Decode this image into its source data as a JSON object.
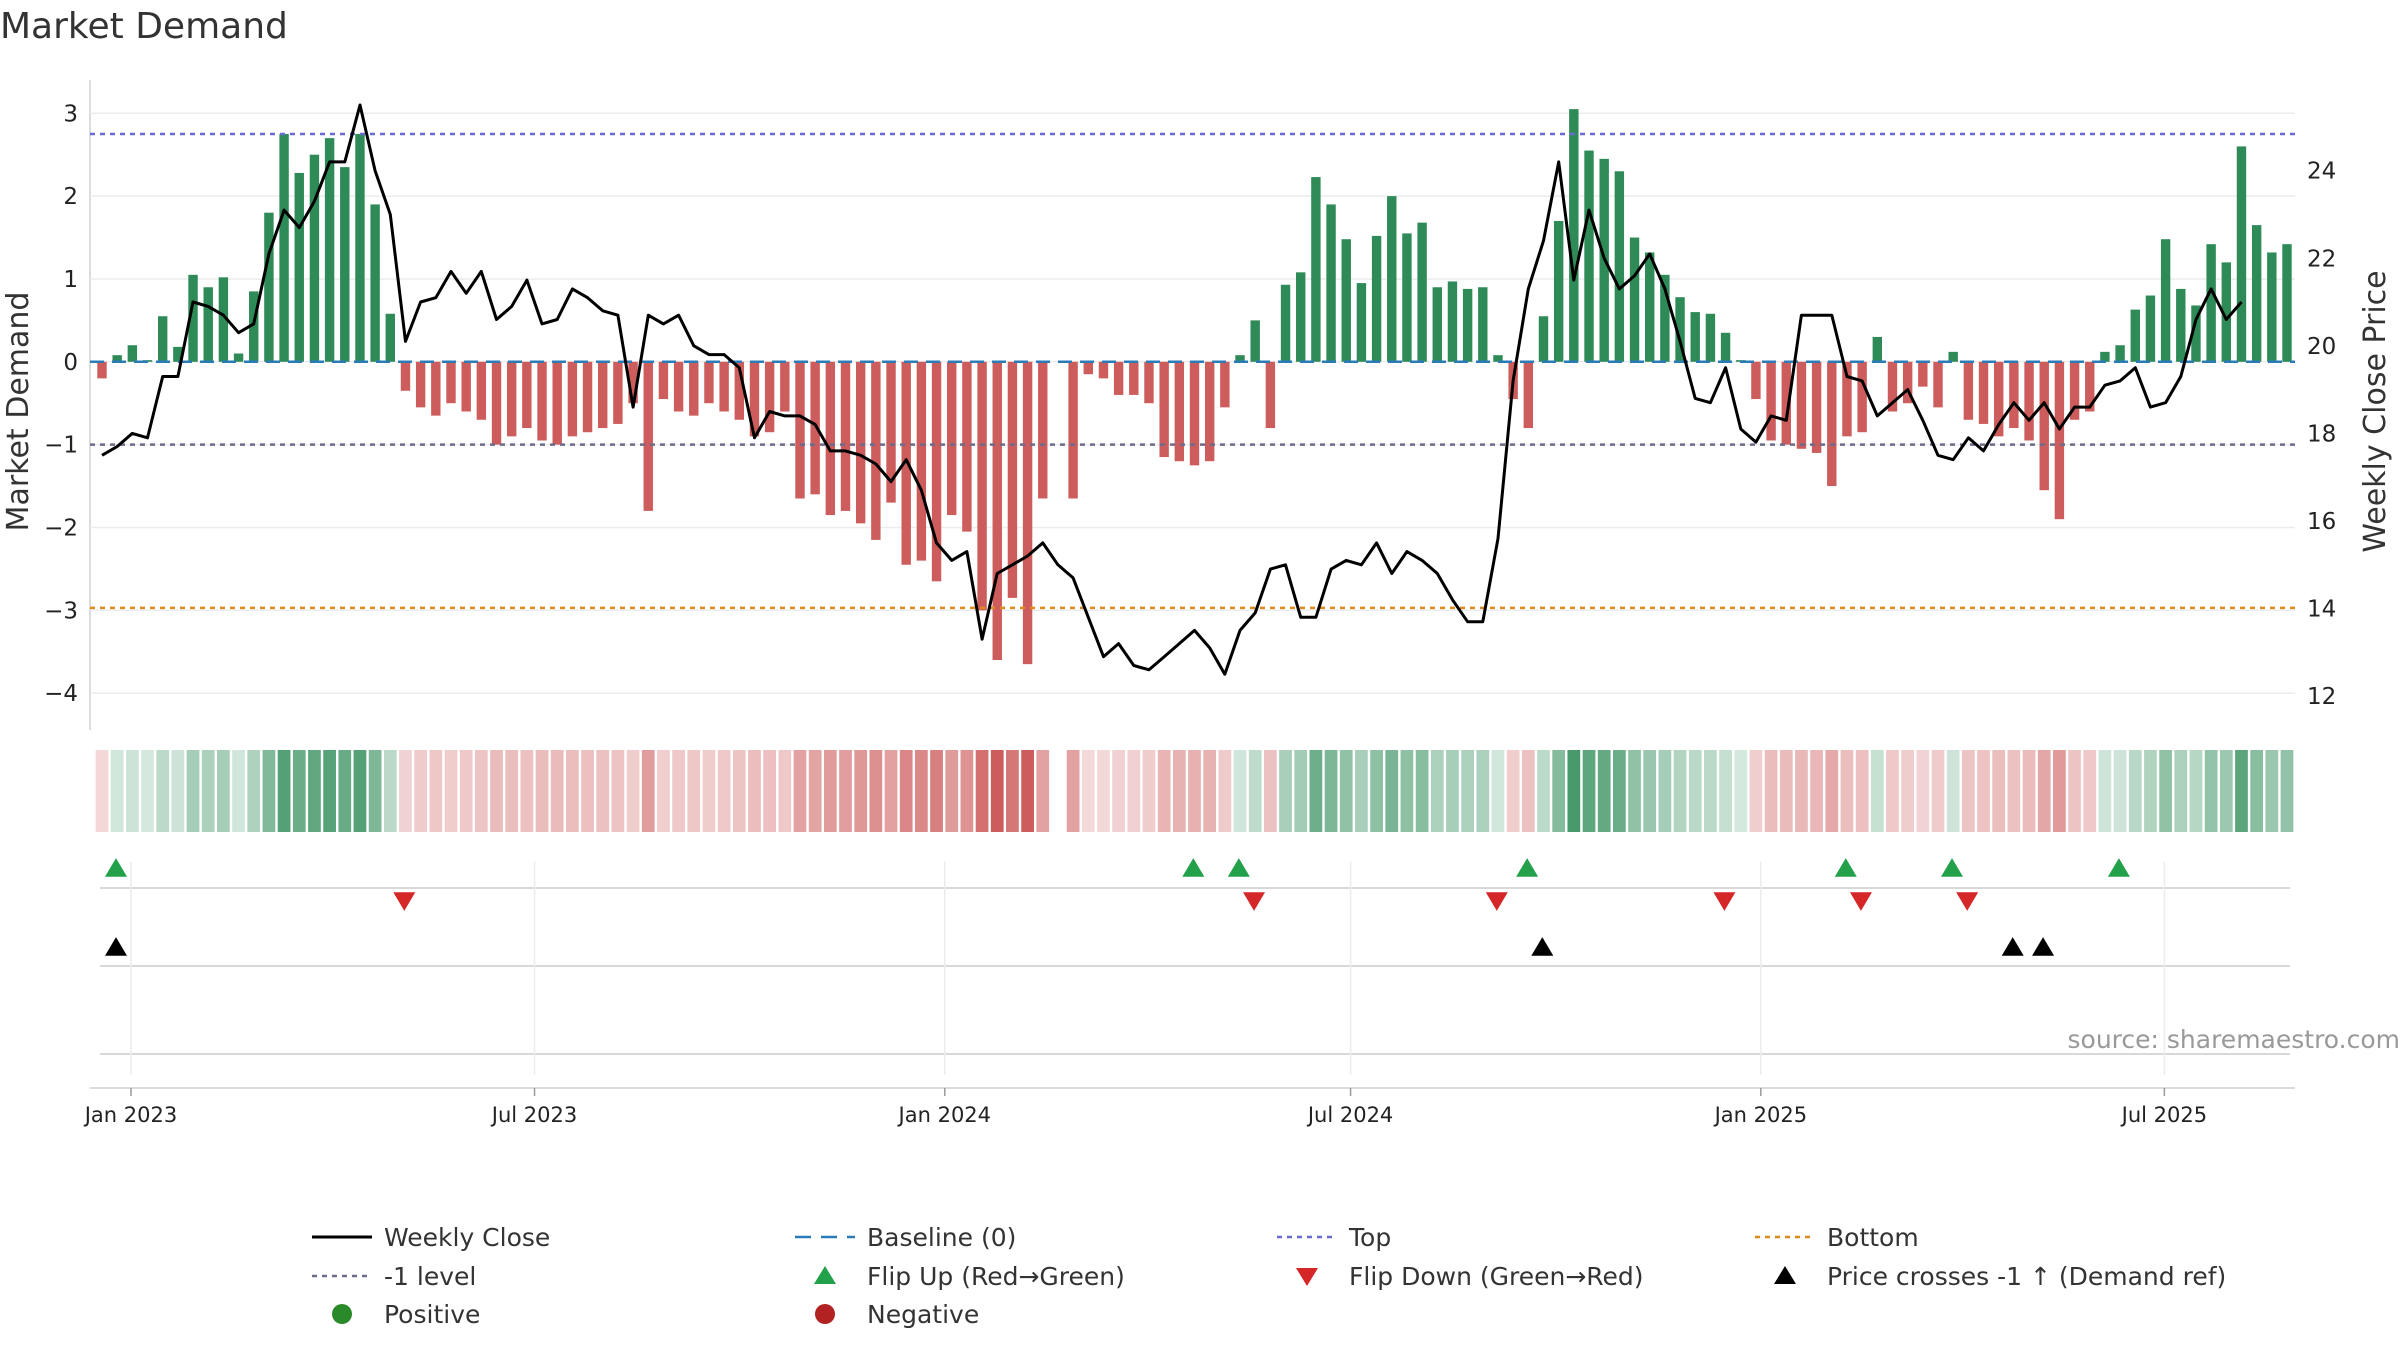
{
  "title": "Market Demand",
  "source": "source: sharemaestro.com",
  "chart_data": {
    "type": "bar",
    "ylabel_left": "Market Demand",
    "ylabel_right": "Weekly Close Price",
    "y_left_ticks": [
      "3",
      "2",
      "1",
      "0",
      "−1",
      "−2",
      "−3",
      "−4"
    ],
    "y_left_tick_values": [
      3,
      2,
      1,
      0,
      -1,
      -2,
      -3,
      -4
    ],
    "y_right_ticks": [
      "24",
      "22",
      "20",
      "18",
      "16",
      "14",
      "12"
    ],
    "y_right_tick_values": [
      24,
      22,
      20,
      18,
      16,
      14,
      12
    ],
    "ylim_left": [
      -4.3,
      3.1
    ],
    "ylim_right": [
      11.5,
      25.5
    ],
    "x_ticks": [
      "Jan 2023",
      "Jul 2023",
      "Jan 2024",
      "Jul 2024",
      "Jan 2025",
      "Jul 2025"
    ],
    "x_tick_values": [
      "2023-01-01",
      "2023-07-01",
      "2024-01-01",
      "2024-07-01",
      "2025-01-01",
      "2025-07-01"
    ],
    "first_week": "2022-12-19",
    "last_week": "2025-08-25",
    "reference_lines": [
      {
        "name": "Top",
        "value": 2.75,
        "color": "#6a6ad6"
      },
      {
        "name": "-1 level",
        "value": -1,
        "color": "#6b6b8a"
      },
      {
        "name": "Bottom",
        "value": -2.97,
        "color": "#e08a1e"
      },
      {
        "name": "Baseline (0)",
        "value": 0,
        "color": "#2b7bb9"
      }
    ],
    "demand": [
      -0.2,
      0.08,
      0.2,
      0.02,
      0.55,
      0.18,
      1.05,
      0.9,
      1.02,
      0.1,
      0.85,
      1.8,
      2.75,
      2.28,
      2.5,
      2.7,
      2.35,
      2.75,
      1.9,
      0.58,
      -0.35,
      -0.55,
      -0.65,
      -0.5,
      -0.6,
      -0.7,
      -1.0,
      -0.9,
      -0.8,
      -0.95,
      -1.0,
      -0.9,
      -0.85,
      -0.8,
      -0.75,
      -0.5,
      -1.8,
      -0.45,
      -0.6,
      -0.65,
      -0.5,
      -0.6,
      -0.7,
      -0.9,
      -0.85,
      -0.6,
      -1.65,
      -1.6,
      -1.85,
      -1.8,
      -1.95,
      -2.15,
      -1.7,
      -2.45,
      -2.4,
      -2.65,
      -1.85,
      -2.05,
      -3.0,
      -3.6,
      -2.85,
      -3.65,
      -1.65,
      0,
      -1.65,
      -0.15,
      -0.2,
      -0.4,
      -0.4,
      -0.5,
      -1.15,
      -1.2,
      -1.25,
      -1.2,
      -0.55,
      0.08,
      0.5,
      -0.8,
      0.93,
      1.08,
      2.23,
      1.9,
      1.48,
      0.95,
      1.52,
      2.0,
      1.55,
      1.68,
      0.9,
      0.97,
      0.88,
      0.9,
      0.08,
      -0.45,
      -0.8,
      0.55,
      1.7,
      3.05,
      2.55,
      2.45,
      2.3,
      1.5,
      1.32,
      1.05,
      0.78,
      0.6,
      0.58,
      0.35,
      0.02,
      -0.45,
      -0.95,
      -1.0,
      -1.05,
      -1.1,
      -1.5,
      -0.9,
      -0.85,
      0.3,
      -0.6,
      -0.5,
      -0.3,
      -0.55,
      0.12,
      -0.7,
      -0.75,
      -0.9,
      -0.8,
      -0.95,
      -1.55,
      -1.9,
      -0.7,
      -0.6,
      0.12,
      0.2,
      0.63,
      0.8,
      1.48,
      0.88,
      0.68,
      1.42,
      1.2,
      2.6,
      1.65,
      1.32,
      1.42
    ],
    "close": [
      17.5,
      17.7,
      18.0,
      17.9,
      19.3,
      19.3,
      21.0,
      20.9,
      20.7,
      20.3,
      20.5,
      22.1,
      23.1,
      22.7,
      23.3,
      24.2,
      24.2,
      25.5,
      24.0,
      23.0,
      20.1,
      21.0,
      21.1,
      21.7,
      21.2,
      21.7,
      20.6,
      20.9,
      21.5,
      20.5,
      20.6,
      21.3,
      21.1,
      20.8,
      20.7,
      18.6,
      20.7,
      20.5,
      20.7,
      20.0,
      19.8,
      19.8,
      19.5,
      17.9,
      18.5,
      18.4,
      18.4,
      18.2,
      17.6,
      17.6,
      17.5,
      17.3,
      16.9,
      17.4,
      16.7,
      15.5,
      15.1,
      15.3,
      13.3,
      14.8,
      15.0,
      15.2,
      15.5,
      15.0,
      14.7,
      13.8,
      12.9,
      13.2,
      12.7,
      12.6,
      12.9,
      13.2,
      13.5,
      13.1,
      12.5,
      13.5,
      13.9,
      14.9,
      15.0,
      13.8,
      13.8,
      14.9,
      15.1,
      15.0,
      15.5,
      14.8,
      15.3,
      15.1,
      14.8,
      14.2,
      13.7,
      13.7,
      15.6,
      19.2,
      21.3,
      22.4,
      24.2,
      21.5,
      23.1,
      22.0,
      21.3,
      21.6,
      22.1,
      21.3,
      20.1,
      18.8,
      18.7,
      19.5,
      18.1,
      17.8,
      18.4,
      18.3,
      20.7,
      20.7,
      20.7,
      19.3,
      19.2,
      18.4,
      18.7,
      19.0,
      18.3,
      17.5,
      17.4,
      17.9,
      17.6,
      18.2,
      18.7,
      18.3,
      18.7,
      18.1,
      18.6,
      18.6,
      19.1,
      19.2,
      19.5,
      18.6,
      18.7,
      19.3,
      20.6,
      21.3,
      20.6,
      21.0
    ],
    "flip_up_weeks": [
      0,
      71,
      74,
      93,
      114,
      121,
      132
    ],
    "flip_down_weeks": [
      19,
      75,
      91,
      106,
      115,
      122
    ],
    "price_cross_weeks": [
      0,
      94,
      125,
      127
    ],
    "legend": [
      {
        "label": "Weekly Close",
        "symbol": "line",
        "color": "#000000"
      },
      {
        "label": "Baseline (0)",
        "symbol": "dash",
        "color": "#2b7bb9"
      },
      {
        "label": "Top",
        "symbol": "dot",
        "color": "#6a6ad6"
      },
      {
        "label": "Bottom",
        "symbol": "dot",
        "color": "#e08a1e"
      },
      {
        "label": "-1 level",
        "symbol": "dot",
        "color": "#6b6b8a"
      },
      {
        "label": "Flip Up (Red→Green)",
        "symbol": "triangle-up",
        "color": "#22a04a"
      },
      {
        "label": "Flip Down (Green→Red)",
        "symbol": "triangle-down",
        "color": "#d62728"
      },
      {
        "label": "Price crosses -1 ↑ (Demand ref)",
        "symbol": "triangle-up",
        "color": "#000000"
      },
      {
        "label": "Positive",
        "symbol": "circle",
        "color": "#2a8a2a"
      },
      {
        "label": "Negative",
        "symbol": "circle",
        "color": "#b22222"
      }
    ],
    "colors": {
      "positive_bar": "#2e8b57",
      "negative_bar": "#cd5c5c",
      "close_line": "#000000"
    }
  }
}
